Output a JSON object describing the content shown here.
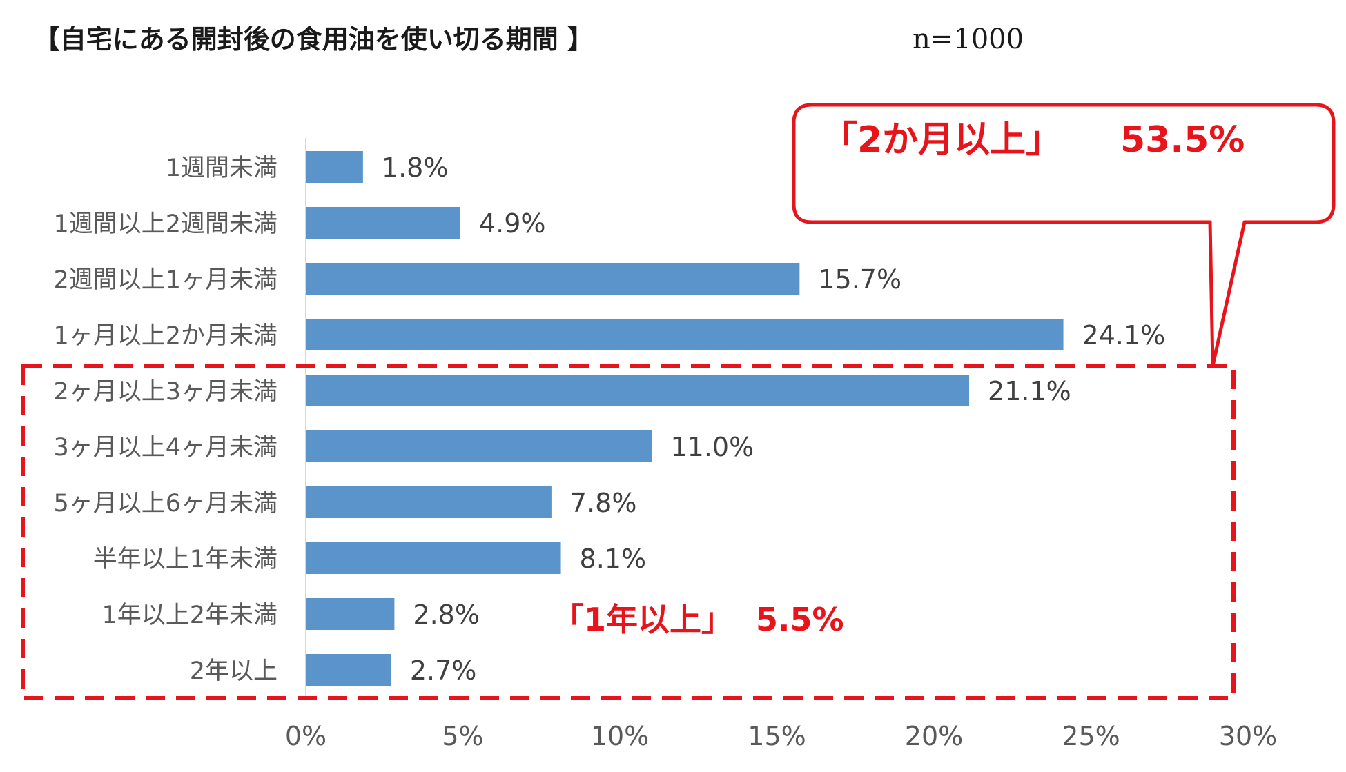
{
  "chart_data": {
    "type": "bar",
    "orientation": "horizontal",
    "title": "【自宅にある開封後の食用油を使い切る期間 】",
    "subtitle": "n=1000",
    "categories": [
      "1週間未満",
      "1週間以上2週間未満",
      "2週間以上1ヶ月未満",
      "1ヶ月以上2か月未満",
      "2ヶ月以上3ヶ月未満",
      "3ヶ月以上4ヶ月未満",
      "5ヶ月以上6ヶ月未満",
      "半年以上1年未満",
      "1年以上2年未満",
      "2年以上"
    ],
    "values": [
      1.8,
      4.9,
      15.7,
      24.1,
      21.1,
      11.0,
      7.8,
      8.1,
      2.8,
      2.7
    ],
    "value_labels": [
      "1.8%",
      "4.9%",
      "15.7%",
      "24.1%",
      "21.1%",
      "11.0%",
      "7.8%",
      "8.1%",
      "2.8%",
      "2.7%"
    ],
    "xlim": [
      0,
      30
    ],
    "xticks": [
      0,
      5,
      10,
      15,
      20,
      25,
      30
    ],
    "xtick_labels": [
      "0%",
      "5%",
      "10%",
      "15%",
      "20%",
      "25%",
      "30%"
    ],
    "grid": false,
    "bar_color": "#5b93cb",
    "annotations": [
      {
        "text_label": "「2か月以上」",
        "text_value": "53.5%",
        "color": "#e8141b",
        "style": "speech-callout"
      },
      {
        "text_label": "「1年以上」",
        "text_value": "5.5%",
        "color": "#e8141b",
        "style": "text"
      }
    ],
    "highlight_box": {
      "categories_from": "2ヶ月以上3ヶ月未満",
      "categories_to": "2年以上",
      "color": "#e8141b",
      "style": "dashed"
    }
  }
}
